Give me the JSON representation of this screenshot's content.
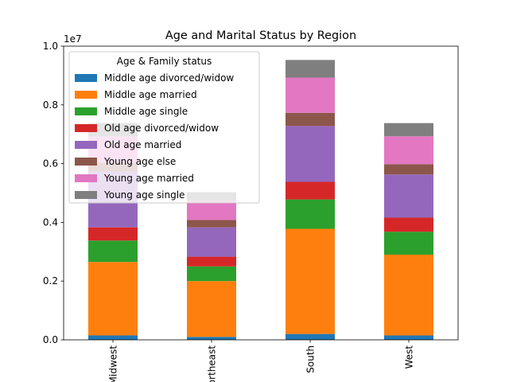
{
  "chart_data": {
    "type": "bar",
    "stacked": true,
    "title": "Age and Marital Status by Region",
    "xlabel": "",
    "ylabel": "",
    "offset_label": "1e7",
    "ylim": [
      0,
      1.0
    ],
    "yticks": [
      "0.0",
      "0.2",
      "0.4",
      "0.6",
      "0.8",
      "1.0"
    ],
    "categories": [
      "Midwest",
      "Northeast",
      "South",
      "West"
    ],
    "legend": {
      "title": "Age & Family status",
      "placement": "upper left"
    },
    "series": [
      {
        "name": "Middle age divorced/widow",
        "color": "#1f77b4",
        "values": [
          0.015,
          0.01,
          0.02,
          0.015
        ]
      },
      {
        "name": "Middle age married",
        "color": "#ff7f0e",
        "values": [
          0.25,
          0.19,
          0.358,
          0.275
        ]
      },
      {
        "name": "Middle age single",
        "color": "#2ca02c",
        "values": [
          0.073,
          0.05,
          0.1,
          0.078
        ]
      },
      {
        "name": "Old age divorced/widow",
        "color": "#d62728",
        "values": [
          0.045,
          0.033,
          0.06,
          0.048
        ]
      },
      {
        "name": "Old age married",
        "color": "#9467bd",
        "values": [
          0.19,
          0.1,
          0.19,
          0.147
        ]
      },
      {
        "name": "Young age else",
        "color": "#8c564b",
        "values": [
          0.03,
          0.025,
          0.045,
          0.035
        ]
      },
      {
        "name": "Young age married",
        "color": "#e377c2",
        "values": [
          0.09,
          0.065,
          0.12,
          0.095
        ]
      },
      {
        "name": "Young age single",
        "color": "#7f7f7f",
        "values": [
          0.045,
          0.03,
          0.06,
          0.045
        ]
      }
    ]
  }
}
